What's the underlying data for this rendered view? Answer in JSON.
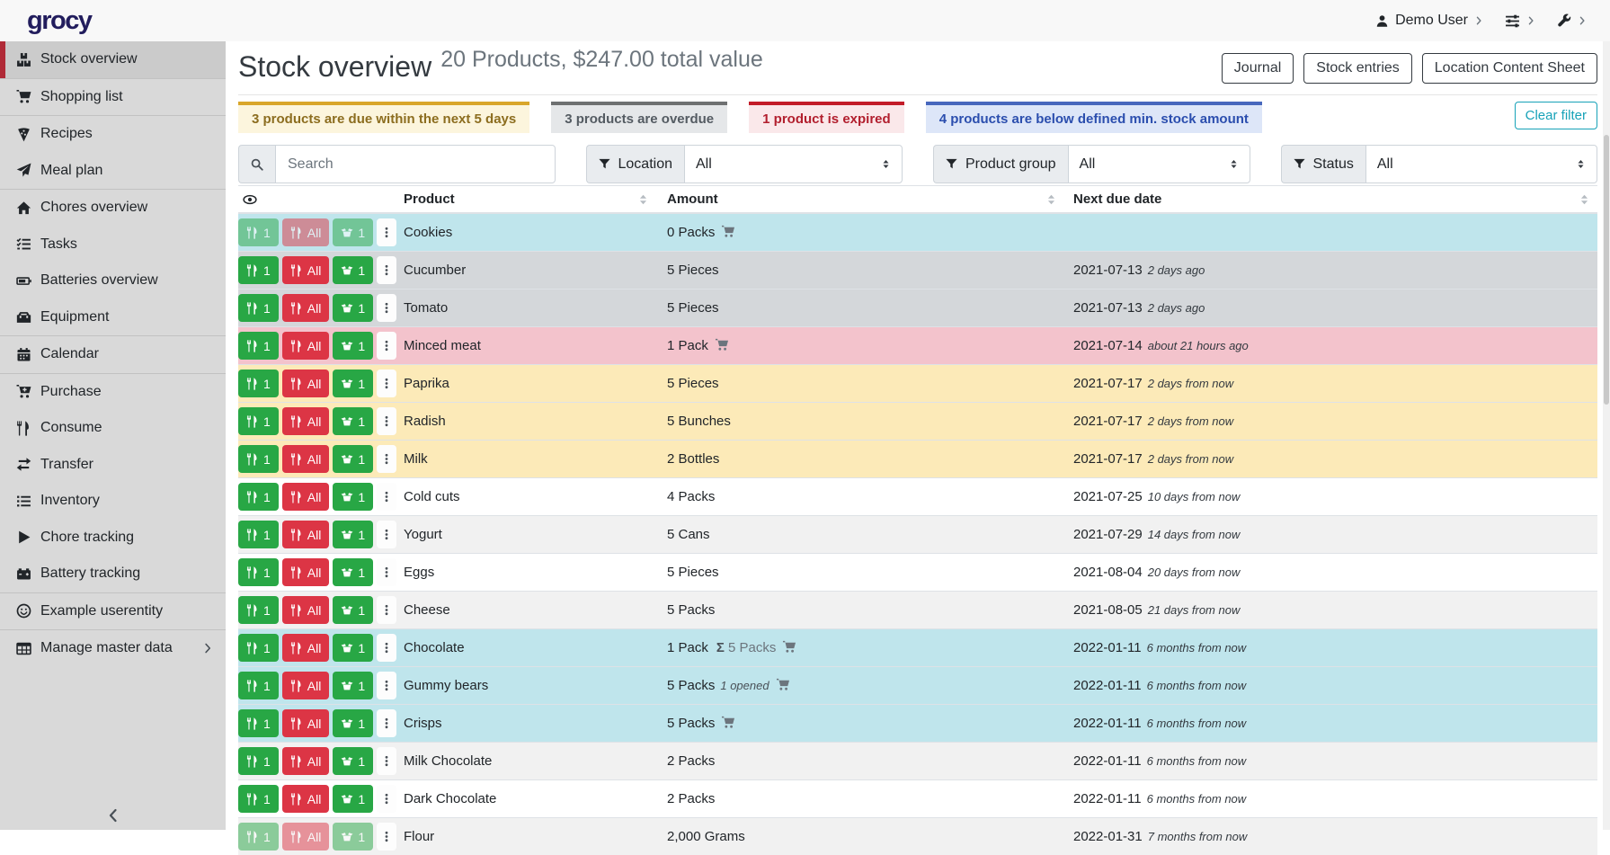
{
  "navbar": {
    "logo": "grocy",
    "user_label": "Demo User"
  },
  "sidebar": {
    "items": [
      {
        "label": "Stock overview",
        "icon": "boxes",
        "active": true,
        "divider_after": true
      },
      {
        "label": "Shopping list",
        "icon": "shopping-cart",
        "divider_after": true
      },
      {
        "label": "Recipes",
        "icon": "pizza-slice"
      },
      {
        "label": "Meal plan",
        "icon": "paper-plane",
        "divider_after": true
      },
      {
        "label": "Chores overview",
        "icon": "home"
      },
      {
        "label": "Tasks",
        "icon": "tasks"
      },
      {
        "label": "Batteries overview",
        "icon": "battery"
      },
      {
        "label": "Equipment",
        "icon": "toolbox",
        "divider_after": true
      },
      {
        "label": "Calendar",
        "icon": "calendar",
        "divider_after": true
      },
      {
        "label": "Purchase",
        "icon": "cart-plus"
      },
      {
        "label": "Consume",
        "icon": "utensils"
      },
      {
        "label": "Transfer",
        "icon": "exchange"
      },
      {
        "label": "Inventory",
        "icon": "list"
      },
      {
        "label": "Chore tracking",
        "icon": "play"
      },
      {
        "label": "Battery tracking",
        "icon": "car-battery",
        "divider_after": true
      },
      {
        "label": "Example userentity",
        "icon": "smile",
        "divider_after": true
      },
      {
        "label": "Manage master data",
        "icon": "table",
        "chevron": true
      }
    ]
  },
  "header": {
    "title": "Stock overview",
    "subtitle": "20 Products, $247.00 total value",
    "buttons": [
      {
        "label": "Journal"
      },
      {
        "label": "Stock entries"
      },
      {
        "label": "Location Content Sheet"
      }
    ]
  },
  "alerts": [
    {
      "text": "3 products are due within the next 5 days",
      "variant": "warning"
    },
    {
      "text": "3 products are overdue",
      "variant": "secondary"
    },
    {
      "text": "1 product is expired",
      "variant": "danger"
    },
    {
      "text": "4 products are below defined min. stock amount",
      "variant": "primary"
    }
  ],
  "clear_filter_label": "Clear filter",
  "filters": {
    "search_placeholder": "Search",
    "groups": [
      {
        "label": "Location",
        "value": "All"
      },
      {
        "label": "Product group",
        "value": "All"
      },
      {
        "label": "Status",
        "value": "All"
      }
    ]
  },
  "table": {
    "columns": {
      "product": "Product",
      "amount": "Amount",
      "due": "Next due date"
    },
    "actions": {
      "consume_one": "1",
      "consume_all": "All",
      "open_one": "1"
    },
    "rows": [
      {
        "product": "Cookies",
        "amount": "0 Packs",
        "cart": true,
        "due": "",
        "due_note": "",
        "status": "info",
        "faded": true
      },
      {
        "product": "Cucumber",
        "amount": "5 Pieces",
        "due": "2021-07-13",
        "due_note": "2 days ago",
        "status": "secondary"
      },
      {
        "product": "Tomato",
        "amount": "5 Pieces",
        "due": "2021-07-13",
        "due_note": "2 days ago",
        "status": "secondary"
      },
      {
        "product": "Minced meat",
        "amount": "1 Pack",
        "cart": true,
        "due": "2021-07-14",
        "due_note": "about 21 hours ago",
        "status": "danger"
      },
      {
        "product": "Paprika",
        "amount": "5 Pieces",
        "due": "2021-07-17",
        "due_note": "2 days from now",
        "status": "warning"
      },
      {
        "product": "Radish",
        "amount": "5 Bunches",
        "due": "2021-07-17",
        "due_note": "2 days from now",
        "status": "warning"
      },
      {
        "product": "Milk",
        "amount": "2 Bottles",
        "due": "2021-07-17",
        "due_note": "2 days from now",
        "status": "warning"
      },
      {
        "product": "Cold cuts",
        "amount": "4 Packs",
        "due": "2021-07-25",
        "due_note": "10 days from now"
      },
      {
        "product": "Yogurt",
        "amount": "5 Cans",
        "due": "2021-07-29",
        "due_note": "14 days from now",
        "stripe": true
      },
      {
        "product": "Eggs",
        "amount": "5 Pieces",
        "due": "2021-08-04",
        "due_note": "20 days from now"
      },
      {
        "product": "Cheese",
        "amount": "5 Packs",
        "due": "2021-08-05",
        "due_note": "21 days from now",
        "stripe": true
      },
      {
        "product": "Chocolate",
        "amount": "1 Pack",
        "sum": "5 Packs",
        "cart": true,
        "due": "2022-01-11",
        "due_note": "6 months from now",
        "status": "info"
      },
      {
        "product": "Gummy bears",
        "amount": "5 Packs",
        "note": "1 opened",
        "cart": true,
        "due": "2022-01-11",
        "due_note": "6 months from now",
        "status": "info"
      },
      {
        "product": "Crisps",
        "amount": "5 Packs",
        "cart": true,
        "due": "2022-01-11",
        "due_note": "6 months from now",
        "status": "info"
      },
      {
        "product": "Milk Chocolate",
        "amount": "2 Packs",
        "due": "2022-01-11",
        "due_note": "6 months from now",
        "stripe": true
      },
      {
        "product": "Dark Chocolate",
        "amount": "2 Packs",
        "due": "2022-01-11",
        "due_note": "6 months from now"
      },
      {
        "product": "Flour",
        "amount": "2,000 Grams",
        "due": "2022-01-31",
        "due_note": "7 months from now",
        "stripe": true,
        "faded": true
      }
    ]
  }
}
